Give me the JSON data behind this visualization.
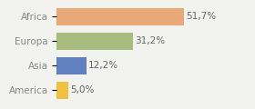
{
  "categories": [
    "America",
    "Asia",
    "Europa",
    "Africa"
  ],
  "values": [
    5.0,
    12.2,
    31.2,
    51.7
  ],
  "labels": [
    "5,0%",
    "12,2%",
    "31,2%",
    "51,7%"
  ],
  "bar_colors": [
    "#f0c040",
    "#6080c0",
    "#a8bc80",
    "#e8a878"
  ],
  "background_color": "#f2f2ee",
  "text_color": "#888888",
  "label_color": "#666666",
  "fontsize": 7.5,
  "xlim": [
    0,
    68
  ],
  "bar_height": 0.72
}
